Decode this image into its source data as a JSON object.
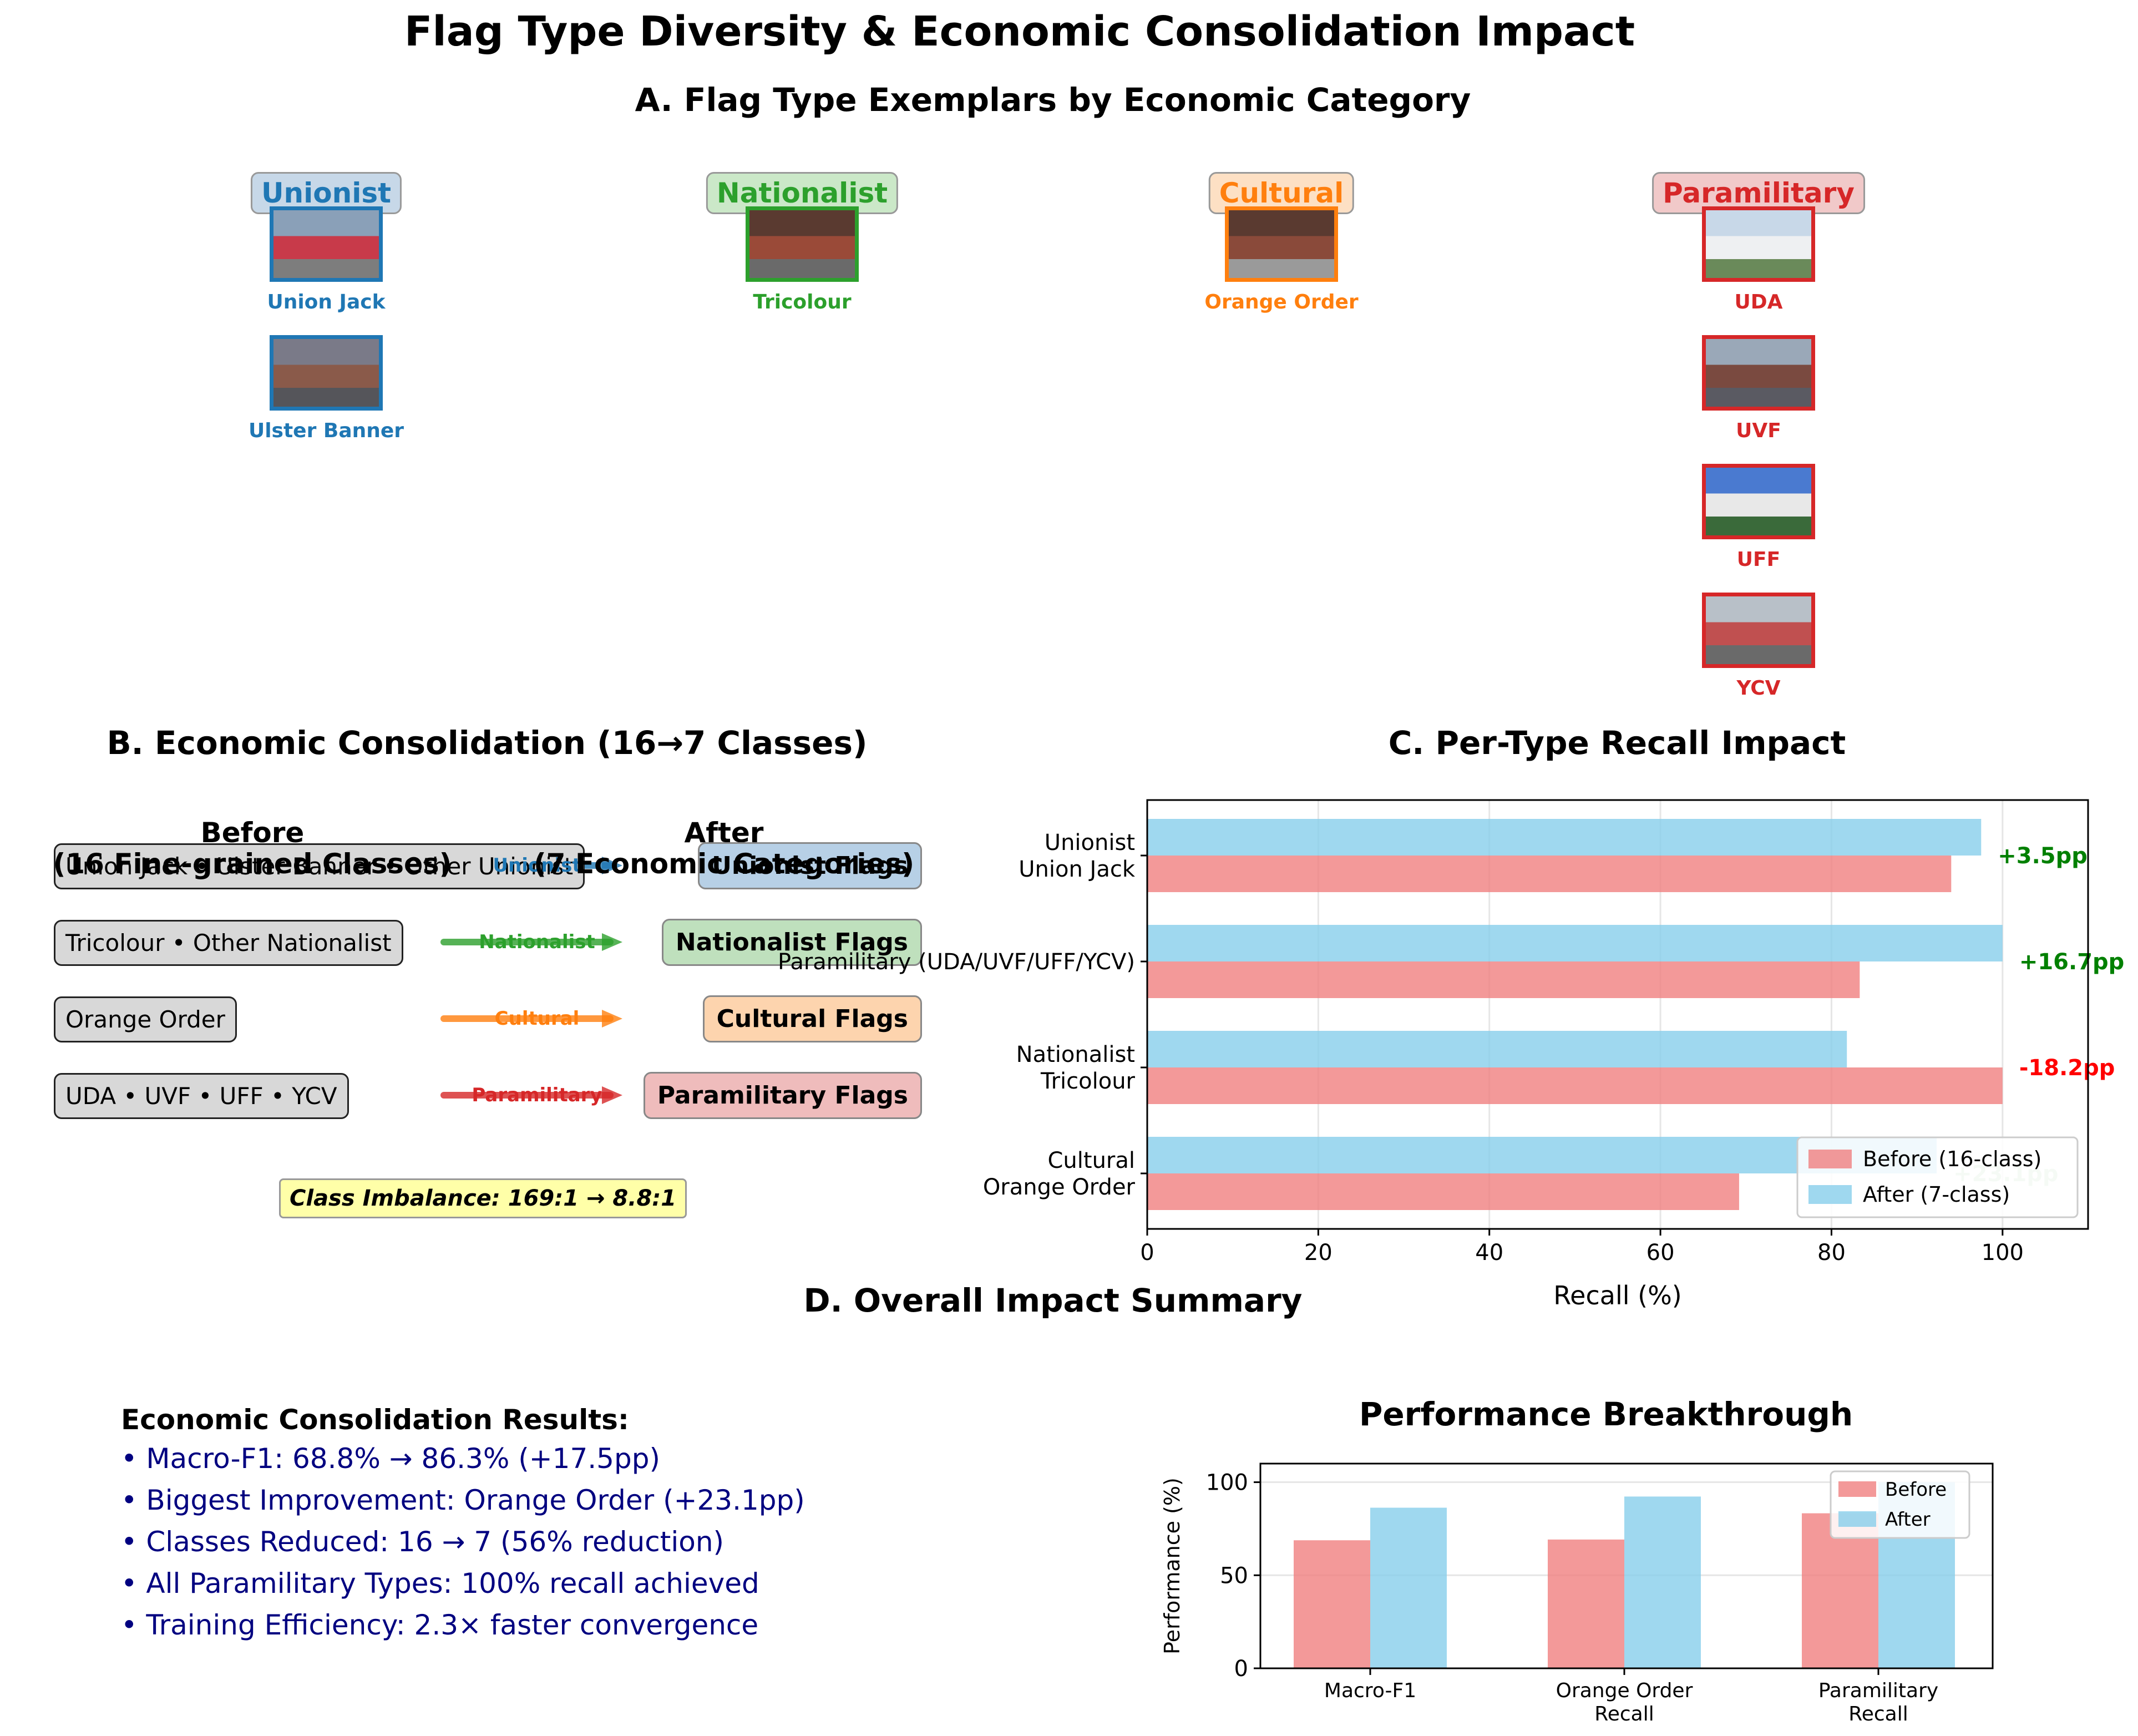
{
  "figure": {
    "title": "Flag Type Diversity & Economic Consolidation Impact"
  },
  "panel_a": {
    "title": "A. Flag Type Exemplars by Economic Category",
    "categories": [
      {
        "name": "Unionist",
        "color": "#1f77b4",
        "bg": "#c7d8e8",
        "flags": [
          "Union Jack",
          "Ulster Banner"
        ]
      },
      {
        "name": "Nationalist",
        "color": "#2ca02c",
        "bg": "#cbe8c8",
        "flags": [
          "Tricolour"
        ]
      },
      {
        "name": "Cultural",
        "color": "#ff7f0e",
        "bg": "#fde0c4",
        "flags": [
          "Orange Order"
        ]
      },
      {
        "name": "Paramilitary",
        "color": "#d62728",
        "bg": "#f1c9c9",
        "flags": [
          "UDA",
          "UVF",
          "UFF",
          "YCV"
        ]
      }
    ]
  },
  "panel_b": {
    "title": "B. Economic Consolidation (16→7 Classes)",
    "before_header": "Before",
    "before_sub": "(16 Fine-grained Classes)",
    "after_header": "After",
    "after_sub": "(7 Economic Categories)",
    "rows": [
      {
        "before": "Union Jack • Ulster Banner • Other Unionist",
        "arrow": "Unionist",
        "after": "Unionist Flags",
        "color": "#1f77b4",
        "bg": "#b7d0e6"
      },
      {
        "before": "Tricolour • Other Nationalist",
        "arrow": "Nationalist",
        "after": "Nationalist Flags",
        "color": "#2ca02c",
        "bg": "#bfe0bd"
      },
      {
        "before": "Orange Order",
        "arrow": "Cultural",
        "after": "Cultural Flags",
        "color": "#ff7f0e",
        "bg": "#fdd4ae"
      },
      {
        "before": "UDA • UVF • UFF • YCV",
        "arrow": "Paramilitary",
        "after": "Paramilitary Flags",
        "color": "#d62728",
        "bg": "#efbcbc"
      }
    ],
    "imbalance": "Class Imbalance: 169:1 → 8.8:1"
  },
  "panel_c": {
    "title": "C. Per-Type Recall Impact"
  },
  "panel_d": {
    "title": "D. Overall Impact Summary",
    "results_heading": "Economic Consolidation Results:",
    "results": [
      "• Macro-F1: 68.8% → 86.3% (+17.5pp)",
      "• Biggest Improvement: Orange Order (+23.1pp)",
      "• Classes Reduced: 16 → 7 (56% reduction)",
      "• All Paramilitary Types: 100% recall achieved",
      "• Training Efficiency: 2.3× faster convergence"
    ]
  },
  "chart_data": [
    {
      "type": "bar",
      "orientation": "horizontal",
      "title": "C. Per-Type Recall Impact",
      "categories": [
        "Unionist\nUnion Jack",
        "Paramilitary (UDA/UVF/UFF/YCV)",
        "Nationalist\nTricolour",
        "Cultural\nOrange Order"
      ],
      "series": [
        {
          "name": "Before (16-class)",
          "color": "#f08080",
          "values": [
            94.0,
            83.3,
            100.0,
            69.2
          ]
        },
        {
          "name": "After (7-class)",
          "color": "#87ceeb",
          "values": [
            97.5,
            100.0,
            81.8,
            92.3
          ]
        }
      ],
      "deltas": [
        "+3.5pp",
        "+16.7pp",
        "-18.2pp",
        "+23.1pp"
      ],
      "delta_colors": [
        "#008000",
        "#008000",
        "#ff0000",
        "#008000"
      ],
      "xlabel": "Recall (%)",
      "ylabel": "",
      "xlim": [
        0,
        110
      ],
      "xticks": [
        0,
        20,
        40,
        60,
        80,
        100
      ],
      "grid": true,
      "legend": "lower-right"
    },
    {
      "type": "bar",
      "title": "Performance Breakthrough",
      "categories": [
        "Macro-F1",
        "Orange Order\nRecall",
        "Paramilitary\nRecall"
      ],
      "series": [
        {
          "name": "Before",
          "color": "#f08080",
          "values": [
            68.8,
            69.2,
            83.3
          ]
        },
        {
          "name": "After",
          "color": "#87ceeb",
          "values": [
            86.3,
            92.3,
            100.0
          ]
        }
      ],
      "xlabel": "",
      "ylabel": "Performance (%)",
      "ylim": [
        0,
        110
      ],
      "yticks": [
        0,
        50,
        100
      ],
      "grid": true,
      "legend": "top-right"
    }
  ]
}
